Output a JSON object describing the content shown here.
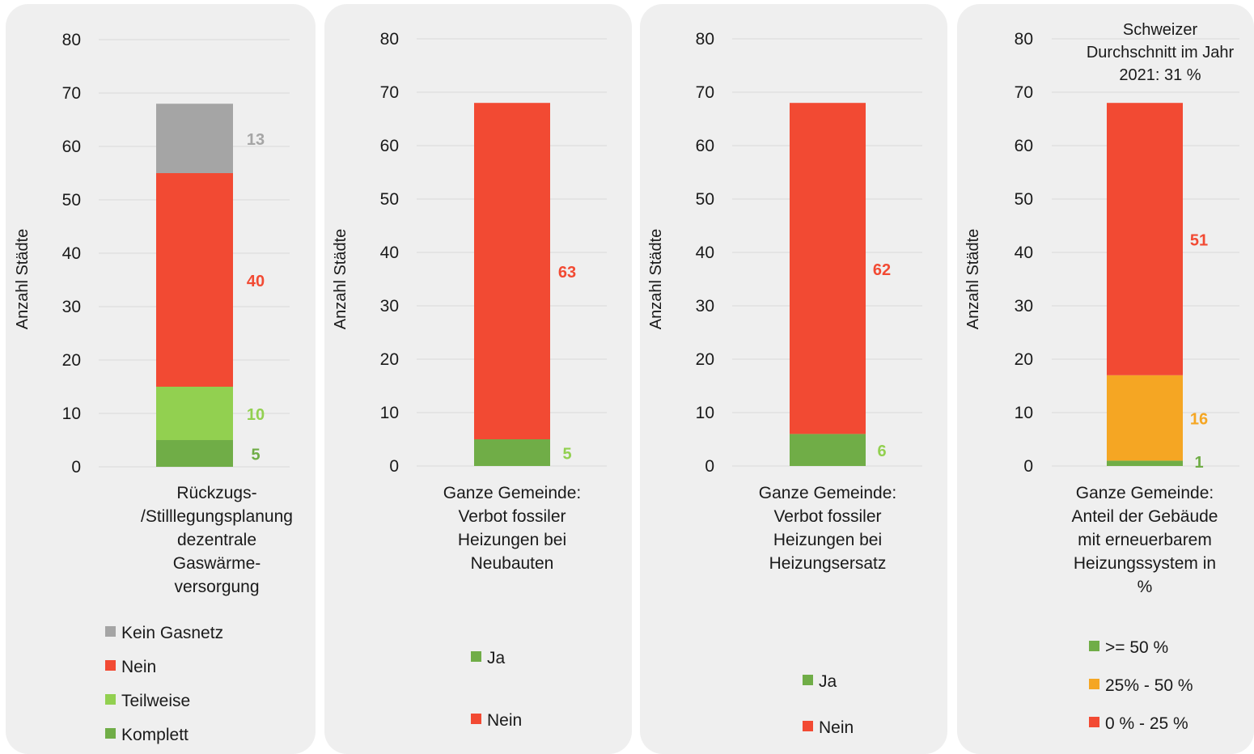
{
  "colors": {
    "kein_gasnetz": "#a5a5a5",
    "nein": "#f24a33",
    "teilweise": "#92d050",
    "komplett": "#70ad47",
    "ja": "#70ad47",
    "ge50": "#70ad47",
    "p25_50": "#f5a623",
    "p0_25": "#f24a33",
    "grid": "#d9d9d9",
    "text": "#1a1a1a"
  },
  "chart_data": [
    {
      "type": "bar",
      "stacked": true,
      "ylabel": "Anzahl Städte",
      "ylim": [
        0,
        80
      ],
      "yticks": [
        "0",
        "10",
        "20",
        "30",
        "40",
        "50",
        "60",
        "70",
        "80"
      ],
      "category_lines": [
        "Rückzugs-",
        "/Stilllegungsplanung",
        "dezentrale",
        "Gaswärme-",
        "versorgung"
      ],
      "series": [
        {
          "name": "Komplett",
          "value": 5,
          "color": "#70ad47",
          "label_color": "#70ad47"
        },
        {
          "name": "Teilweise",
          "value": 10,
          "color": "#92d050",
          "label_color": "#92d050"
        },
        {
          "name": "Nein",
          "value": 40,
          "color": "#f24a33",
          "label_color": "#f24a33"
        },
        {
          "name": "Kein Gasnetz",
          "value": 13,
          "color": "#a5a5a5",
          "label_color": "#a5a5a5"
        }
      ],
      "legend": [
        {
          "label": "Kein Gasnetz",
          "color": "#a5a5a5"
        },
        {
          "label": "Nein",
          "color": "#f24a33"
        },
        {
          "label": "Teilweise",
          "color": "#92d050"
        },
        {
          "label": "Komplett",
          "color": "#70ad47"
        }
      ],
      "grid": true
    },
    {
      "type": "bar",
      "stacked": true,
      "ylabel": "Anzahl Städte",
      "ylim": [
        0,
        80
      ],
      "yticks": [
        "0",
        "10",
        "20",
        "30",
        "40",
        "50",
        "60",
        "70",
        "80"
      ],
      "category_lines": [
        "Ganze Gemeinde:",
        "Verbot fossiler",
        "Heizungen bei",
        "Neubauten"
      ],
      "series": [
        {
          "name": "Ja",
          "value": 5,
          "color": "#70ad47",
          "label_color": "#92d050"
        },
        {
          "name": "Nein",
          "value": 63,
          "color": "#f24a33",
          "label_color": "#f24a33"
        }
      ],
      "legend": [
        {
          "label": "Ja",
          "color": "#70ad47"
        },
        {
          "label": "Nein",
          "color": "#f24a33"
        }
      ],
      "grid": true
    },
    {
      "type": "bar",
      "stacked": true,
      "ylabel": "Anzahl Städte",
      "ylim": [
        0,
        80
      ],
      "yticks": [
        "0",
        "10",
        "20",
        "30",
        "40",
        "50",
        "60",
        "70",
        "80"
      ],
      "category_lines": [
        "Ganze Gemeinde:",
        "Verbot fossiler",
        "Heizungen bei",
        "Heizungsersatz"
      ],
      "series": [
        {
          "name": "Ja",
          "value": 6,
          "color": "#70ad47",
          "label_color": "#92d050"
        },
        {
          "name": "Nein",
          "value": 62,
          "color": "#f24a33",
          "label_color": "#f24a33"
        }
      ],
      "legend": [
        {
          "label": "Ja",
          "color": "#70ad47"
        },
        {
          "label": "Nein",
          "color": "#f24a33"
        }
      ],
      "grid": true
    },
    {
      "type": "bar",
      "stacked": true,
      "ylabel": "Anzahl Städte",
      "ylim": [
        0,
        80
      ],
      "yticks": [
        "0",
        "10",
        "20",
        "30",
        "40",
        "50",
        "60",
        "70",
        "80"
      ],
      "annotation_lines": [
        "Schweizer",
        "Durchschnitt im Jahr",
        "2021: 31 %"
      ],
      "category_lines": [
        "Ganze Gemeinde:",
        "Anteil der Gebäude",
        "mit erneuerbarem",
        "Heizungssystem in",
        "%"
      ],
      "series": [
        {
          "name": ">= 50 %",
          "value": 1,
          "color": "#70ad47",
          "label_color": "#70ad47"
        },
        {
          "name": "25% - 50 %",
          "value": 16,
          "color": "#f5a623",
          "label_color": "#f5a623"
        },
        {
          "name": "0 % - 25 %",
          "value": 51,
          "color": "#f24a33",
          "label_color": "#f24a33"
        }
      ],
      "legend": [
        {
          "label": ">= 50 %",
          "color": "#70ad47"
        },
        {
          "label": "25% - 50 %",
          "color": "#f5a623"
        },
        {
          "label": "0 % - 25 %",
          "color": "#f24a33"
        }
      ],
      "grid": true
    }
  ]
}
